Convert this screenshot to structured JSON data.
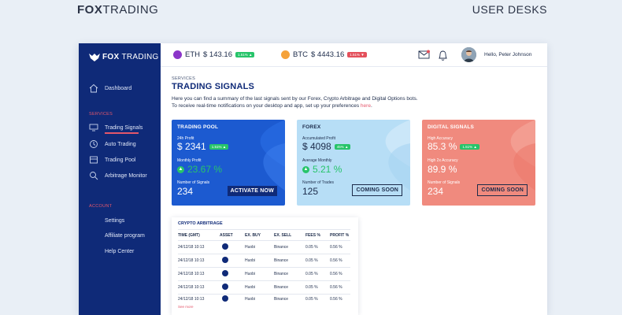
{
  "brand": {
    "prefix": "FOX",
    "suffix": "TRADING"
  },
  "top_right": "USER DESKS",
  "sidebar": {
    "logo_prefix": "FOX",
    "logo_suffix": "TRADING",
    "dashboard": "Dashboard",
    "section_services": "SERVICES",
    "items": [
      {
        "label": "Trading Signals",
        "icon": "signal-icon"
      },
      {
        "label": "Auto Trading",
        "icon": "auto-trading-icon"
      },
      {
        "label": "Trading Pool",
        "icon": "pool-icon"
      },
      {
        "label": "Arbitrage Monitor",
        "icon": "monitor-icon"
      }
    ],
    "section_account": "ACCOUNT",
    "account_items": [
      "Settings",
      "Affiliate program",
      "Help Center"
    ]
  },
  "header": {
    "eth": {
      "name": "ETH",
      "price": "$ 143.16",
      "change": "1.51% ▲",
      "color": "#8b35c9"
    },
    "btc": {
      "name": "BTC",
      "price": "$ 4443.16",
      "change": "1.51% ▼",
      "color": "#f5a23a"
    },
    "greeting": "Hello, Peter Johnson"
  },
  "page": {
    "services_label": "SERVICES",
    "title": "TRADING SIGNALS",
    "desc_line1": "Here you can find a summary of the last signals sent by our Forex, Crypto Arbitrage and Digital Options bots.",
    "desc_line2": "To receive real-time notifications on your desktop and app, set up your preferences ",
    "desc_link": "here",
    "desc_end": "."
  },
  "cards": [
    {
      "title": "TRADING POOL",
      "l1": "24h Profit",
      "v1": "$ 2341",
      "b1": "1.51% ▲",
      "l2": "Monthly Profit",
      "v2": "23.67 %",
      "l3": "Number of Signals",
      "v3": "234",
      "button": "ACTIVATE NOW"
    },
    {
      "title": "FOREX",
      "l1": "Accumulated Profit",
      "v1": "$ 4098",
      "b1": "45% ▲",
      "l2": "Average Monthly",
      "v2": "5.21 %",
      "l3": "Number of Trades",
      "v3": "125",
      "button": "COMING SOON"
    },
    {
      "title": "DIGITAL SIGNALS",
      "l1": "High Accuracy",
      "v1": "85.3 %",
      "b1": "1.51% ▲",
      "l2": "High 2x Accuracy",
      "v2": "89.9 %",
      "l3": "Number of Signals",
      "v3": "234",
      "button": "COMING SOON"
    }
  ],
  "arbitrage": {
    "title": "CRYPTO ARBITRAGE",
    "columns": [
      "TIME (GMT)",
      "ASSET",
      "EX. BUY",
      "EX. SELL",
      "FEES %",
      "PROFIT %"
    ],
    "rows": [
      [
        "24/12/18 10:13",
        "Huobi",
        "Binance",
        "0.05 %",
        "0.56 %"
      ],
      [
        "24/12/18 10:13",
        "Huobi",
        "Binance",
        "0.05 %",
        "0.56 %"
      ],
      [
        "24/12/18 10:13",
        "Huobi",
        "Binance",
        "0.05 %",
        "0.56 %"
      ],
      [
        "24/12/18 10:13",
        "Huobi",
        "Binance",
        "0.05 %",
        "0.56 %"
      ],
      [
        "24/12/18 10:13",
        "Huobi",
        "Binance",
        "0.05 %",
        "0.56 %"
      ]
    ],
    "see_more": "See more"
  }
}
